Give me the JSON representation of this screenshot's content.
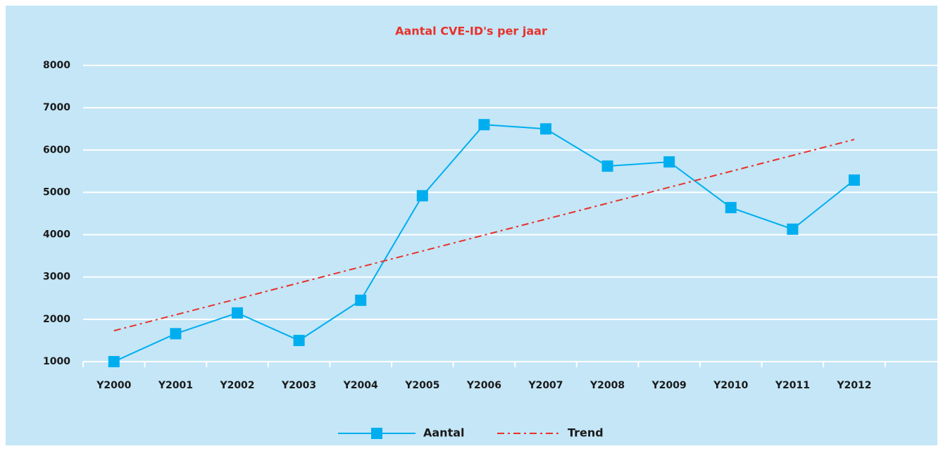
{
  "chart_data": {
    "type": "line",
    "title": "Aantal CVE-ID's per jaar",
    "categories": [
      "Y2000",
      "Y2001",
      "Y2002",
      "Y2003",
      "Y2004",
      "Y2005",
      "Y2006",
      "Y2007",
      "Y2008",
      "Y2009",
      "Y2010",
      "Y2011",
      "Y2012"
    ],
    "series": [
      {
        "name": "Aantal",
        "color": "#00aeef",
        "values": [
          1000,
          1660,
          2150,
          1500,
          2450,
          4920,
          6600,
          6500,
          5620,
          5720,
          4640,
          4130,
          5290
        ]
      },
      {
        "name": "Trend",
        "color": "#e8312a",
        "values": [
          1730,
          2107,
          2483,
          2860,
          3237,
          3613,
          3990,
          4367,
          4743,
          5120,
          5497,
          5873,
          6250
        ]
      }
    ],
    "ylim": [
      1000,
      8000
    ],
    "yticks": [
      1000,
      2000,
      3000,
      4000,
      5000,
      6000,
      7000,
      8000
    ],
    "grid": true,
    "legend": "bottom"
  }
}
